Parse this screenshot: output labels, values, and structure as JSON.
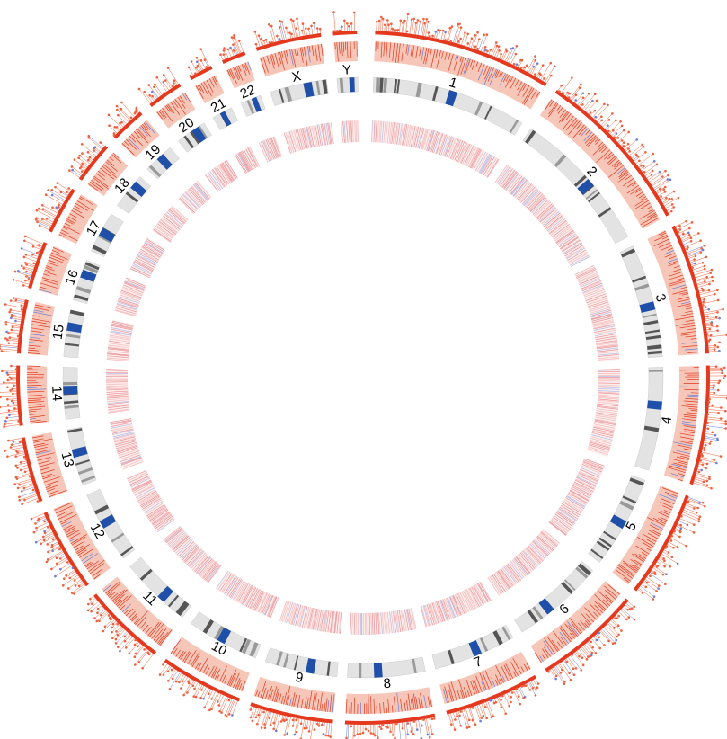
{
  "chromosomes": [
    "1",
    "2",
    "3",
    "4",
    "5",
    "6",
    "7",
    "8",
    "9",
    "10",
    "11",
    "12",
    "13",
    "14",
    "15",
    "16",
    "17",
    "18",
    "19",
    "20",
    "21",
    "22",
    "X",
    "Y"
  ]
}
